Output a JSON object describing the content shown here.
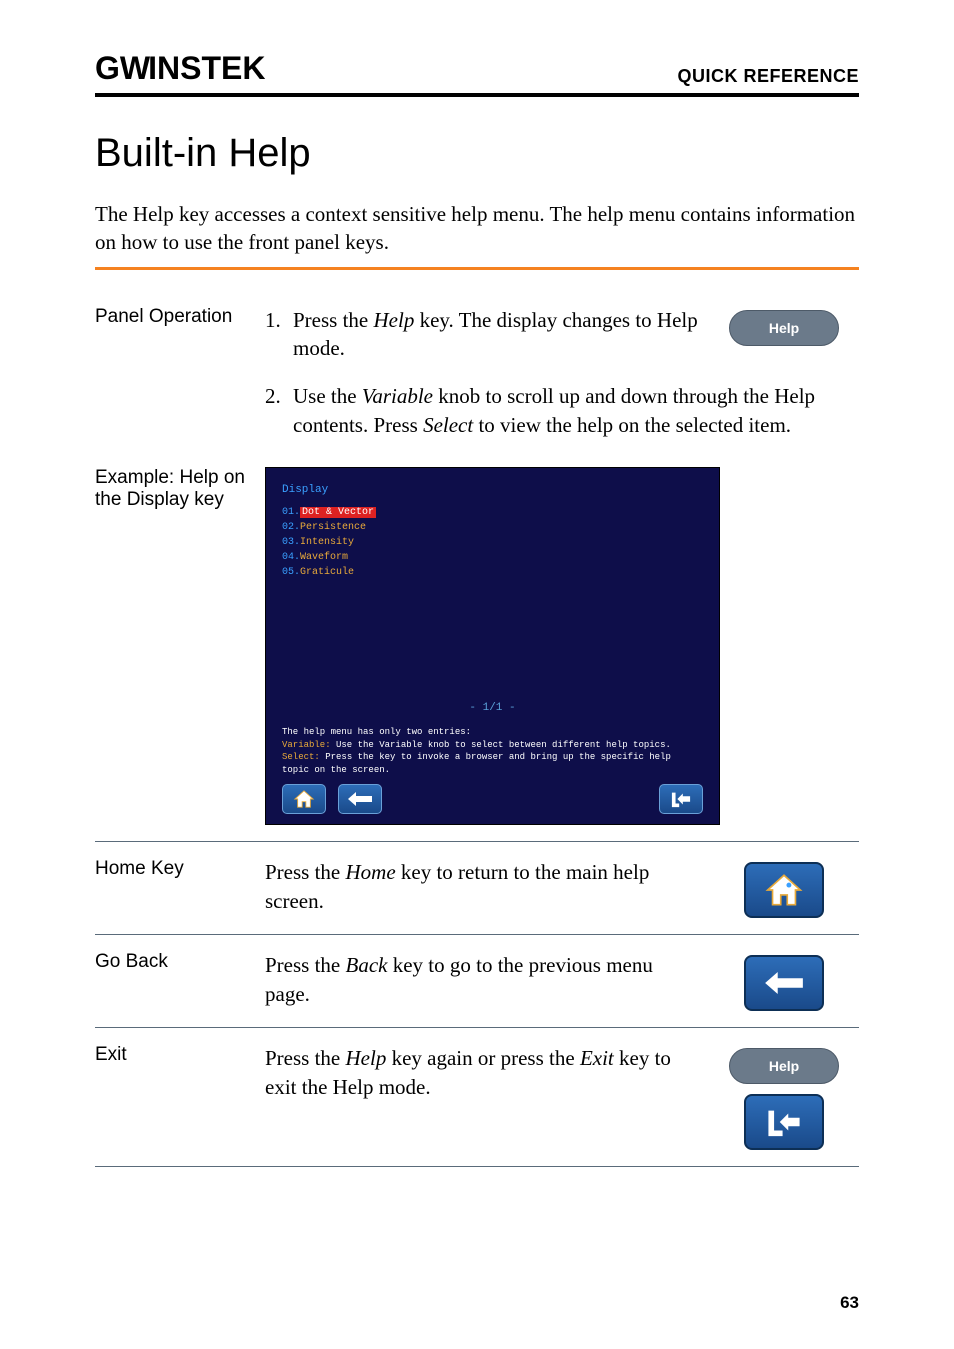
{
  "header": {
    "logo": "GWINSTEK",
    "section": "QUICK REFERENCE"
  },
  "title": "Built-in Help",
  "intro": "The Help key accesses a context sensitive help menu. The help menu contains information on how to use the front panel keys.",
  "panel_operation": {
    "label": "Panel Operation",
    "steps": [
      {
        "n": "1.",
        "prefix": "Press the ",
        "key": "Help",
        "suffix": " key. The display changes to Help mode."
      },
      {
        "n": "2.",
        "prefix": "Use the ",
        "key": "Variable",
        "mid": " knob to scroll up and down through the Help contents. Press ",
        "key2": "Select",
        "suffix": " to view the help on the selected item."
      }
    ],
    "help_button_label": "Help"
  },
  "example": {
    "label": "Example: Help on the Display key",
    "screen": {
      "title": "Display",
      "items": [
        {
          "n": "01.",
          "txt": "Dot & Vector",
          "selected": true
        },
        {
          "n": "02.",
          "txt": "Persistence",
          "selected": false
        },
        {
          "n": "03.",
          "txt": "Intensity",
          "selected": false
        },
        {
          "n": "04.",
          "txt": "Waveform",
          "selected": false
        },
        {
          "n": "05.",
          "txt": "Graticule",
          "selected": false
        }
      ],
      "page_indicator": "- 1/1 -",
      "footer_line1": "The help menu has only two entries:",
      "footer_var_label": "Variable:",
      "footer_var_text": " Use the Variable knob to select between different help topics.",
      "footer_sel_label": "Select:",
      "footer_sel_text": " Press the key to invoke a browser and bring up the specific help topic on the screen."
    }
  },
  "rows": [
    {
      "label": "Home Key",
      "prefix": "Press the ",
      "key": "Home",
      "suffix": " key to return to the main help screen.",
      "icon": "home"
    },
    {
      "label": "Go Back",
      "prefix": "Press the ",
      "key": "Back",
      "suffix": " key to go to the previous menu page.",
      "icon": "back"
    },
    {
      "label": "Exit",
      "prefix": "Press the ",
      "key": "Help",
      "mid": " key again or press the ",
      "key2": "Exit",
      "suffix": " key to exit the Help mode.",
      "icon": "exit",
      "show_help_key": true
    }
  ],
  "page_number": "63",
  "colors": {
    "orange": "#f58220",
    "screen_bg": "#0e0e4a",
    "btn_grad_top": "#2d6db8",
    "btn_grad_bot": "#1a4a8a",
    "help_key_bg": "#6b7a8a"
  }
}
